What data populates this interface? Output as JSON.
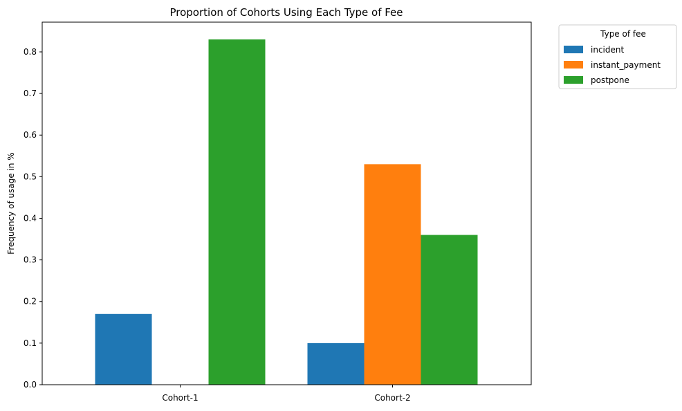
{
  "chart_data": {
    "type": "bar",
    "title": "Proportion of Cohorts Using Each Type of Fee",
    "xlabel": "",
    "ylabel": "Frequency of usage in %",
    "categories": [
      "Cohort-1",
      "Cohort-2"
    ],
    "series": [
      {
        "name": "incident",
        "color": "#1f77b4",
        "values": [
          0.17,
          0.1
        ]
      },
      {
        "name": "instant_payment",
        "color": "#ff7f0e",
        "values": [
          0.0,
          0.53
        ]
      },
      {
        "name": "postpone",
        "color": "#2ca02c",
        "values": [
          0.83,
          0.36
        ]
      }
    ],
    "ylim": [
      0.0,
      0.8715
    ],
    "yticks": [
      "0.0",
      "0.1",
      "0.2",
      "0.3",
      "0.4",
      "0.5",
      "0.6",
      "0.7",
      "0.8"
    ],
    "legend": {
      "title": "Type of fee",
      "placement": "outside-top-right"
    },
    "grid": false
  }
}
